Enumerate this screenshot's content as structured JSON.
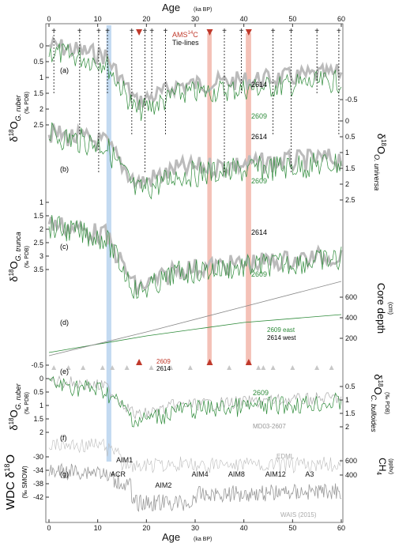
{
  "chart_data": {
    "type": "line",
    "x_axis": {
      "label": "Age",
      "unit": "(ka BP)",
      "range": [
        0,
        60
      ],
      "ticks": [
        0,
        10,
        20,
        30,
        40,
        50,
        60
      ],
      "tick_labels": [
        "0",
        "10",
        "20",
        "30",
        "40",
        "50",
        "60"
      ]
    },
    "legend": {
      "ams_label": "AMS",
      "ams_sup": "14",
      "ams_c": "C",
      "tie_label": "Tie-lines"
    },
    "tie_lines": [
      1.0,
      6.3,
      10.2,
      12.0,
      17.0,
      19.7,
      21.1,
      23.9,
      36.0,
      39.5,
      46.0,
      49.7,
      55.0,
      59.5
    ],
    "ams_ages": [
      18.5,
      33.0,
      41.0
    ],
    "blue_band": [
      11.8,
      12.8
    ],
    "red_bands": [
      [
        32.5,
        33.4
      ],
      [
        40.4,
        41.5
      ]
    ],
    "panels": [
      {
        "id": "a",
        "panel_label": "(a)",
        "y_label": "δ18O",
        "y_sub": "G. ruber",
        "y_unit": "(‰ PDB)",
        "y_ticks_left": [
          "0",
          "0.5",
          "1",
          "1.5",
          "2",
          "2.5"
        ],
        "y_ticks_right": [
          "-0.5"
        ],
        "labels": [
          {
            "text": "2614",
            "color": "#111111"
          },
          {
            "text": "2609",
            "color": "#2e8b3a"
          }
        ]
      },
      {
        "id": "b",
        "panel_label": "(b)",
        "y_label": "δ18O",
        "y_sub": "O. universa",
        "y_ticks_right": [
          "0",
          "0.5",
          "1",
          "1.5",
          "2",
          "2.5"
        ],
        "labels": [
          {
            "text": "2614",
            "color": "#111111"
          },
          {
            "text": "2609",
            "color": "#2e8b3a"
          }
        ]
      },
      {
        "id": "c",
        "panel_label": "(c)",
        "y_label": "δ18O",
        "y_sub": "G. trunca",
        "y_unit": "(‰ PDB)",
        "y_ticks_left": [
          "1",
          "1.5",
          "2",
          "2.5",
          "3",
          "3.5"
        ],
        "labels": [
          {
            "text": "2614",
            "color": "#111111"
          },
          {
            "text": "2609",
            "color": "#2e8b3a"
          }
        ]
      },
      {
        "id": "d",
        "panel_label": "(d)",
        "y_label": "Core depth",
        "y_unit": "(cm)",
        "y_ticks_right": [
          "600",
          "400",
          "200"
        ],
        "labels": [
          {
            "text": "2609 east",
            "color": "#2e8b3a"
          },
          {
            "text": "2614 west",
            "color": "#111111"
          }
        ],
        "marker_label_2609": "2609",
        "marker_label_2614": "2614"
      },
      {
        "id": "e",
        "panel_label": "(e)",
        "y_label": "δ18O",
        "y_sub": "G. ruber",
        "y_unit": "(‰ PDB)",
        "y_ticks_left": [
          "-0.5",
          "0",
          "0.5",
          "1",
          "1.5",
          "2"
        ],
        "right_label": "δ18O",
        "right_sub": "C. bulloides",
        "right_unit": "(‰ PDB)",
        "y_ticks_right": [
          "0.5",
          "1",
          "1.5",
          "2"
        ],
        "labels": [
          {
            "text": "2609",
            "color": "#2e8b3a"
          },
          {
            "text": "MD03-2607",
            "color": "#999999"
          }
        ]
      },
      {
        "id": "f",
        "panel_label": "(f)",
        "y_label": "CH4",
        "y_sub": "4",
        "y_unit": "(ppbv)",
        "y_ticks_right": [
          "600",
          "400"
        ],
        "labels": [
          {
            "text": "EDML",
            "color": "#aaaaaa"
          }
        ]
      },
      {
        "id": "g",
        "panel_label": "(g)",
        "y_label": "WDC δ18O",
        "y_unit": "(‰ SMOW)",
        "y_ticks_left": [
          "-30",
          "-34",
          "-38",
          "-42"
        ],
        "labels": [
          {
            "text": "WAIS (2015)",
            "color": "#aaaaaa"
          }
        ],
        "events": [
          {
            "text": "ACR",
            "age": 14.2
          },
          {
            "text": "AIM1",
            "age": 15.5
          },
          {
            "text": "AIM2",
            "age": 23.5
          },
          {
            "text": "AIM4",
            "age": 31.0
          },
          {
            "text": "AIM8",
            "age": 38.5
          },
          {
            "text": "AIM12",
            "age": 46.5
          },
          {
            "text": "A3",
            "age": 53.5
          }
        ]
      }
    ]
  }
}
